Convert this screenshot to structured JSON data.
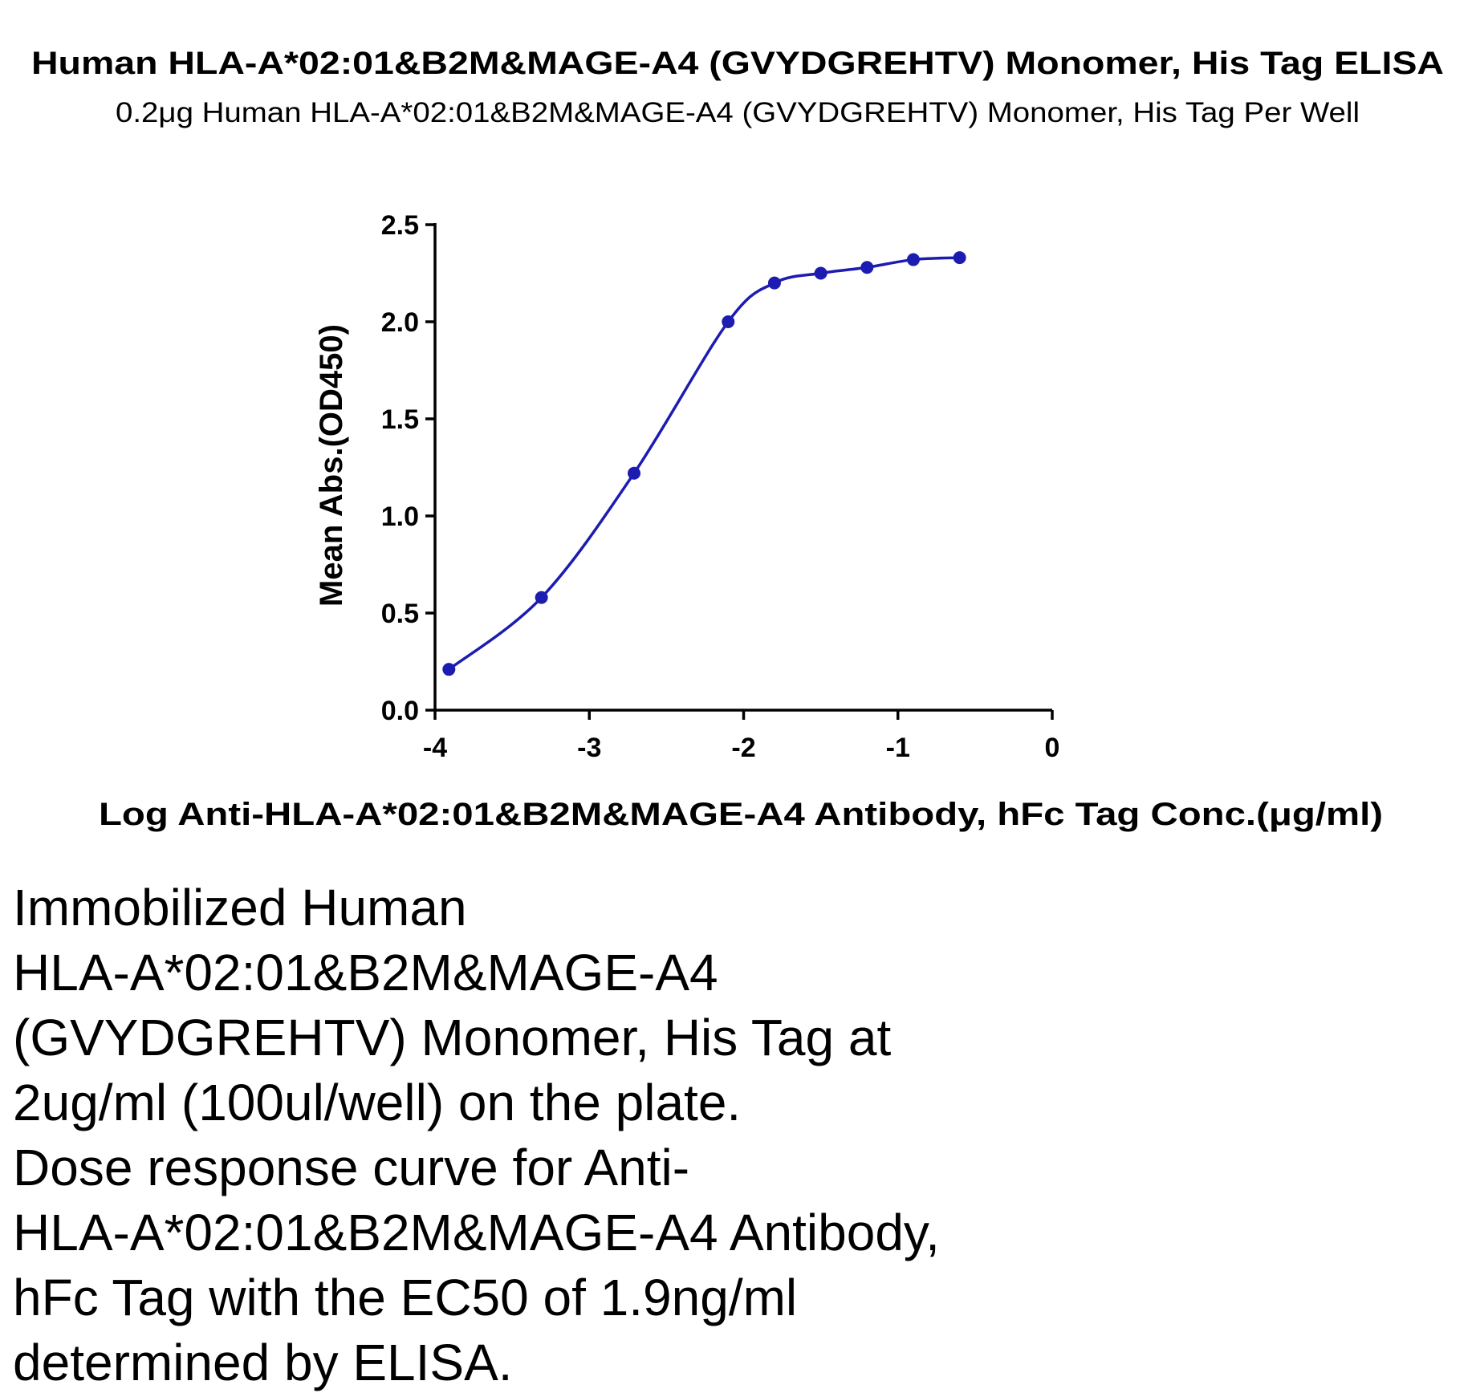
{
  "chart_data": {
    "type": "line",
    "title": "Human HLA-A*02:01&B2M&MAGE-A4 (GVYDGREHTV) Monomer, His Tag ELISA",
    "subtitle": "0.2μg Human HLA-A*02:01&B2M&MAGE-A4 (GVYDGREHTV) Monomer, His Tag Per Well",
    "xlabel": "Log Anti-HLA-A*02:01&B2M&MAGE-A4 Antibody, hFc Tag Conc.(μg/ml)",
    "ylabel": "Mean Abs.(OD450)",
    "x": [
      -3.91,
      -3.31,
      -2.71,
      -2.1,
      -1.8,
      -1.5,
      -1.2,
      -0.9,
      -0.6
    ],
    "series": [
      {
        "name": "Mean Abs.(OD450)",
        "color": "#1c1cb0",
        "values": [
          0.21,
          0.58,
          1.22,
          2.0,
          2.2,
          2.25,
          2.28,
          2.32,
          2.33
        ]
      }
    ],
    "xlim": [
      -4,
      0
    ],
    "xticks": [
      -4,
      -3,
      -2,
      -1,
      0
    ],
    "ylim": [
      0,
      2.5
    ],
    "yticks": [
      {
        "value": 0,
        "label": "0.0"
      },
      {
        "value": 0.5,
        "label": "0.5"
      },
      {
        "value": 1,
        "label": "1.0"
      },
      {
        "value": 1.5,
        "label": "1.5"
      },
      {
        "value": 2,
        "label": "2.0"
      },
      {
        "value": 2.5,
        "label": "2.5"
      }
    ],
    "grid": false
  },
  "caption": {
    "lines": [
      "Immobilized Human",
      "HLA-A*02:01&B2M&MAGE-A4",
      "(GVYDGREHTV) Monomer, His Tag at",
      "2ug/ml (100ul/well) on the plate.",
      "Dose response curve for Anti-",
      "HLA-A*02:01&B2M&MAGE-A4 Antibody,",
      "hFc Tag with the EC50 of 1.9ng/ml",
      "determined by ELISA."
    ]
  }
}
